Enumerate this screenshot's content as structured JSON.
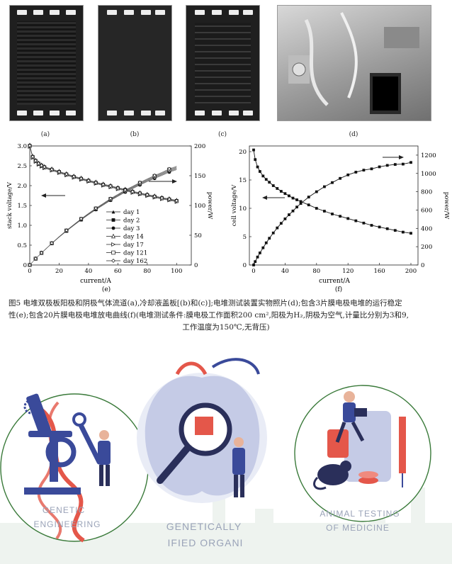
{
  "photos": {
    "labels": [
      "(a)",
      "(b)",
      "(c)",
      "(d)"
    ]
  },
  "chart_data": [
    {
      "type": "line",
      "panel_label": "(e)",
      "xlabel": "current/A",
      "ylabel_left": "stack voltage/V",
      "ylabel_right": "power/W",
      "xlim": [
        0,
        110
      ],
      "ylim_left": [
        0,
        3.0
      ],
      "ylim_right": [
        0,
        200
      ],
      "x_ticks": [
        0,
        20,
        40,
        60,
        80,
        100
      ],
      "y_ticks_left": [
        "0",
        "0.5",
        "1.0",
        "1.5",
        "2.0",
        "2.5",
        "3.0"
      ],
      "y_ticks_right": [
        "0",
        "50",
        "100",
        "150",
        "200"
      ],
      "legend": [
        "day 1",
        "day 2",
        "day 3",
        "day 14",
        "day 17",
        "day 121",
        "day 162"
      ],
      "x": [
        0,
        2,
        4,
        6,
        8,
        10,
        15,
        20,
        25,
        30,
        35,
        40,
        45,
        50,
        55,
        60,
        65,
        70,
        75,
        80,
        85,
        90,
        95,
        100
      ],
      "voltage": [
        3.0,
        2.72,
        2.62,
        2.55,
        2.5,
        2.46,
        2.4,
        2.34,
        2.28,
        2.22,
        2.17,
        2.12,
        2.07,
        2.02,
        1.98,
        1.93,
        1.89,
        1.84,
        1.8,
        1.76,
        1.72,
        1.68,
        1.65,
        1.61
      ],
      "power": [
        0,
        5.4,
        10.5,
        15.3,
        20,
        24.6,
        36,
        46.8,
        57,
        66.6,
        76,
        84.8,
        93.2,
        101,
        108.9,
        115.8,
        122.9,
        128.8,
        135,
        140.8,
        146.2,
        151.2,
        156.8,
        161
      ]
    },
    {
      "type": "line",
      "panel_label": "(f)",
      "xlabel": "current/A",
      "ylabel_left": "cell voltage/V",
      "ylabel_right": "power/W",
      "xlim": [
        0,
        200
      ],
      "ylim_left": [
        0,
        21
      ],
      "ylim_right": [
        0,
        1300
      ],
      "x_ticks": [
        0,
        40,
        80,
        120,
        160,
        200
      ],
      "y_ticks_left": [
        "0",
        "5",
        "10",
        "15",
        "20"
      ],
      "y_ticks_right": [
        "0",
        "200",
        "400",
        "600",
        "800",
        "1000",
        "1200"
      ],
      "x": [
        0,
        2,
        5,
        8,
        12,
        16,
        20,
        25,
        30,
        35,
        40,
        45,
        50,
        55,
        60,
        70,
        80,
        90,
        100,
        110,
        120,
        130,
        140,
        150,
        160,
        170,
        180,
        190,
        200
      ],
      "voltage": [
        20.3,
        18.6,
        17.3,
        16.5,
        15.7,
        15.1,
        14.6,
        14.0,
        13.5,
        13.0,
        12.6,
        12.2,
        11.8,
        11.5,
        11.2,
        10.6,
        10.0,
        9.5,
        9.0,
        8.6,
        8.2,
        7.8,
        7.4,
        7.0,
        6.7,
        6.4,
        6.1,
        5.8,
        5.6
      ],
      "power": [
        0,
        37,
        87,
        132,
        188,
        242,
        292,
        350,
        405,
        455,
        504,
        549,
        590,
        633,
        672,
        742,
        800,
        855,
        900,
        946,
        984,
        1014,
        1036,
        1050,
        1072,
        1088,
        1098,
        1102,
        1120
      ]
    }
  ],
  "caption": {
    "line1": "图5   电堆双极板阳极和阴极气体流道(a),冷却液盖板[(b)和(c)];电堆测试装置实物照片(d);包含3片膜电极电堆的运行稳定",
    "line2": "性(e);包含20片膜电极电堆放电曲线(f)(电堆测试条件:膜电极工作面积200 cm²,阳极为H₂,阴极为空气,计量比分别为3和9,",
    "line3": "工作温度为150℃,无背压)"
  },
  "illustration": {
    "label1_line1": "GENETIC",
    "label1_line2": "ENGINEERING",
    "label2_line1": "GENETICALLY",
    "label2_line2": "IFIED ORGANI",
    "label3_line1": "ANIMAL TESTING",
    "label3_line2": "OF MEDICINE"
  },
  "colors": {
    "illustration_blue": "#3a4a9a",
    "illustration_red": "#e4574a",
    "circle_green": "#3a7a3a"
  }
}
